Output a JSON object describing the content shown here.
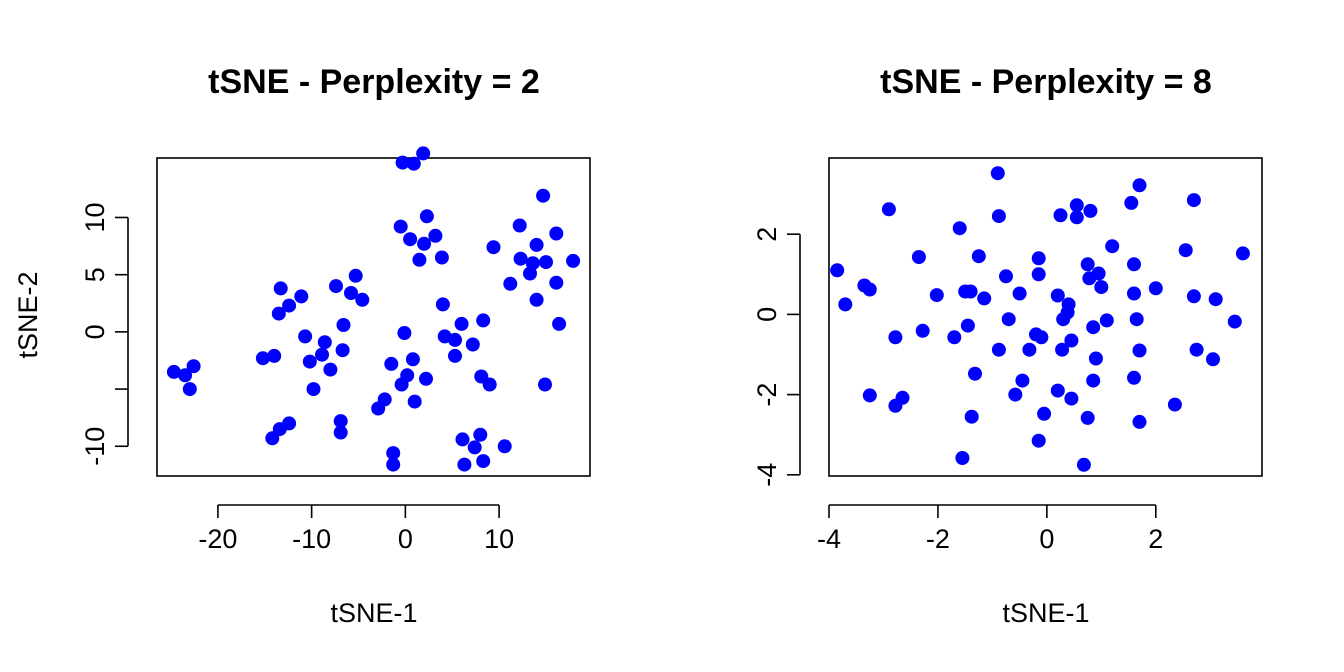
{
  "chart_data": [
    {
      "type": "scatter",
      "title": "tSNE - Perplexity = 2",
      "xlabel": "tSNE-1",
      "ylabel": "tSNE-2",
      "xlim": [
        -26.5,
        19.7
      ],
      "ylim": [
        -12.6,
        15.2
      ],
      "xticks": [
        -20,
        -10,
        0,
        10
      ],
      "yticks": [
        -10,
        -5,
        0,
        5,
        10
      ],
      "ytick_labels": [
        "-10",
        "",
        "0",
        "5",
        "10"
      ],
      "grid": false,
      "marker_color": "#0000ff",
      "points": [
        {
          "x": -24.7,
          "y": -3.5
        },
        {
          "x": -23.5,
          "y": -3.8
        },
        {
          "x": -23.0,
          "y": -5.0
        },
        {
          "x": -22.6,
          "y": -3.0
        },
        {
          "x": -14.2,
          "y": -9.3
        },
        {
          "x": -13.4,
          "y": -8.5
        },
        {
          "x": -12.4,
          "y": -8.0
        },
        {
          "x": -15.2,
          "y": -2.3
        },
        {
          "x": -14.0,
          "y": -2.1
        },
        {
          "x": -13.5,
          "y": 1.6
        },
        {
          "x": -13.3,
          "y": 3.8
        },
        {
          "x": -12.4,
          "y": 2.3
        },
        {
          "x": -11.1,
          "y": 3.1
        },
        {
          "x": -10.7,
          "y": -0.4
        },
        {
          "x": -10.2,
          "y": -2.6
        },
        {
          "x": -9.8,
          "y": -5.0
        },
        {
          "x": -8.9,
          "y": -2.0
        },
        {
          "x": -8.6,
          "y": -0.9
        },
        {
          "x": -8.0,
          "y": -3.3
        },
        {
          "x": -7.4,
          "y": 4.0
        },
        {
          "x": -6.9,
          "y": -7.8
        },
        {
          "x": -6.9,
          "y": -8.8
        },
        {
          "x": -6.7,
          "y": -1.6
        },
        {
          "x": -6.6,
          "y": 0.6
        },
        {
          "x": -5.8,
          "y": 3.4
        },
        {
          "x": -5.3,
          "y": 4.9
        },
        {
          "x": -4.6,
          "y": 2.8
        },
        {
          "x": -2.9,
          "y": -6.7
        },
        {
          "x": -2.2,
          "y": -5.9
        },
        {
          "x": -1.5,
          "y": -2.8
        },
        {
          "x": -1.3,
          "y": -10.6
        },
        {
          "x": -1.3,
          "y": -11.6
        },
        {
          "x": -0.4,
          "y": -4.6
        },
        {
          "x": 0.2,
          "y": -3.8
        },
        {
          "x": -0.1,
          "y": -0.1
        },
        {
          "x": 0.8,
          "y": -2.4
        },
        {
          "x": 1.0,
          "y": -6.1
        },
        {
          "x": 2.2,
          "y": -4.1
        },
        {
          "x": -0.3,
          "y": 14.8
        },
        {
          "x": 0.9,
          "y": 14.7
        },
        {
          "x": 1.9,
          "y": 15.6
        },
        {
          "x": -0.5,
          "y": 9.2
        },
        {
          "x": 0.5,
          "y": 8.1
        },
        {
          "x": 2.0,
          "y": 7.7
        },
        {
          "x": 2.3,
          "y": 10.1
        },
        {
          "x": 3.2,
          "y": 8.4
        },
        {
          "x": 1.5,
          "y": 6.3
        },
        {
          "x": 3.9,
          "y": 6.5
        },
        {
          "x": 4.0,
          "y": 2.4
        },
        {
          "x": 4.2,
          "y": -0.4
        },
        {
          "x": 5.3,
          "y": -0.7
        },
        {
          "x": 5.3,
          "y": -2.1
        },
        {
          "x": 6.0,
          "y": 0.7
        },
        {
          "x": 7.2,
          "y": -1.1
        },
        {
          "x": 8.3,
          "y": 1.0
        },
        {
          "x": 8.1,
          "y": -3.9
        },
        {
          "x": 9.0,
          "y": -4.6
        },
        {
          "x": 6.1,
          "y": -9.4
        },
        {
          "x": 7.4,
          "y": -10.1
        },
        {
          "x": 8.0,
          "y": -9.0
        },
        {
          "x": 6.3,
          "y": -11.6
        },
        {
          "x": 8.3,
          "y": -11.3
        },
        {
          "x": 10.6,
          "y": -10.0
        },
        {
          "x": 9.4,
          "y": 7.4
        },
        {
          "x": 11.2,
          "y": 4.2
        },
        {
          "x": 12.3,
          "y": 6.4
        },
        {
          "x": 12.2,
          "y": 9.3
        },
        {
          "x": 13.3,
          "y": 5.1
        },
        {
          "x": 13.6,
          "y": 6.0
        },
        {
          "x": 14.0,
          "y": 7.6
        },
        {
          "x": 14.7,
          "y": 11.9
        },
        {
          "x": 15.0,
          "y": 6.1
        },
        {
          "x": 14.0,
          "y": 2.8
        },
        {
          "x": 16.1,
          "y": 8.6
        },
        {
          "x": 16.1,
          "y": 4.3
        },
        {
          "x": 16.4,
          "y": 0.7
        },
        {
          "x": 17.9,
          "y": 6.2
        },
        {
          "x": 14.9,
          "y": -4.6
        }
      ]
    },
    {
      "type": "scatter",
      "title": "tSNE - Perplexity = 8",
      "xlabel": "tSNE-1",
      "ylabel": "",
      "xlim": [
        -4.0,
        3.95
      ],
      "ylim": [
        -4.03,
        3.9
      ],
      "xticks": [
        -4,
        -2,
        0,
        2
      ],
      "yticks": [
        -4,
        -2,
        0,
        2
      ],
      "ytick_labels": [
        "-4",
        "-2",
        "0",
        "2"
      ],
      "grid": false,
      "marker_color": "#0000ff",
      "points": [
        {
          "x": -3.85,
          "y": 1.1
        },
        {
          "x": -3.7,
          "y": 0.25
        },
        {
          "x": -3.35,
          "y": 0.72
        },
        {
          "x": -3.25,
          "y": 0.62
        },
        {
          "x": -3.25,
          "y": -2.02
        },
        {
          "x": -2.9,
          "y": 2.62
        },
        {
          "x": -2.78,
          "y": -0.57
        },
        {
          "x": -2.78,
          "y": -2.28
        },
        {
          "x": -2.65,
          "y": -2.08
        },
        {
          "x": -2.35,
          "y": 1.43
        },
        {
          "x": -2.28,
          "y": -0.41
        },
        {
          "x": -2.02,
          "y": 0.48
        },
        {
          "x": -1.7,
          "y": -0.57
        },
        {
          "x": -1.6,
          "y": 2.15
        },
        {
          "x": -1.55,
          "y": -3.58
        },
        {
          "x": -1.5,
          "y": 0.57
        },
        {
          "x": -1.45,
          "y": -0.28
        },
        {
          "x": -1.4,
          "y": 0.57
        },
        {
          "x": -1.38,
          "y": -2.55
        },
        {
          "x": -1.32,
          "y": -1.48
        },
        {
          "x": -1.25,
          "y": 1.45
        },
        {
          "x": -1.15,
          "y": 0.4
        },
        {
          "x": -0.9,
          "y": 3.52
        },
        {
          "x": -0.88,
          "y": 2.45
        },
        {
          "x": -0.88,
          "y": -0.88
        },
        {
          "x": -0.75,
          "y": 0.95
        },
        {
          "x": -0.7,
          "y": -0.12
        },
        {
          "x": -0.58,
          "y": -2.0
        },
        {
          "x": -0.5,
          "y": 0.52
        },
        {
          "x": -0.45,
          "y": -1.65
        },
        {
          "x": -0.32,
          "y": -0.88
        },
        {
          "x": -0.2,
          "y": -0.5
        },
        {
          "x": -0.15,
          "y": 1.4
        },
        {
          "x": -0.15,
          "y": 1.0
        },
        {
          "x": -0.15,
          "y": -3.15
        },
        {
          "x": -0.1,
          "y": -0.57
        },
        {
          "x": -0.05,
          "y": -2.48
        },
        {
          "x": 0.2,
          "y": 0.47
        },
        {
          "x": 0.2,
          "y": -1.9
        },
        {
          "x": 0.25,
          "y": 2.47
        },
        {
          "x": 0.28,
          "y": -0.88
        },
        {
          "x": 0.3,
          "y": -0.12
        },
        {
          "x": 0.38,
          "y": 0.05
        },
        {
          "x": 0.4,
          "y": 0.25
        },
        {
          "x": 0.45,
          "y": -2.1
        },
        {
          "x": 0.45,
          "y": -0.65
        },
        {
          "x": 0.55,
          "y": 2.72
        },
        {
          "x": 0.55,
          "y": 2.42
        },
        {
          "x": 0.68,
          "y": -3.75
        },
        {
          "x": 0.75,
          "y": -2.58
        },
        {
          "x": 0.75,
          "y": 1.25
        },
        {
          "x": 0.78,
          "y": 0.9
        },
        {
          "x": 0.8,
          "y": 2.58
        },
        {
          "x": 0.85,
          "y": -1.65
        },
        {
          "x": 0.85,
          "y": -0.32
        },
        {
          "x": 0.9,
          "y": -1.1
        },
        {
          "x": 0.95,
          "y": 1.02
        },
        {
          "x": 1.0,
          "y": 0.68
        },
        {
          "x": 1.1,
          "y": -0.15
        },
        {
          "x": 1.2,
          "y": 1.7
        },
        {
          "x": 1.55,
          "y": 2.78
        },
        {
          "x": 1.6,
          "y": 1.25
        },
        {
          "x": 1.6,
          "y": 0.52
        },
        {
          "x": 1.6,
          "y": -1.58
        },
        {
          "x": 1.65,
          "y": -0.12
        },
        {
          "x": 1.7,
          "y": 3.22
        },
        {
          "x": 1.7,
          "y": -0.9
        },
        {
          "x": 1.7,
          "y": -2.68
        },
        {
          "x": 2.0,
          "y": 0.65
        },
        {
          "x": 2.35,
          "y": -2.25
        },
        {
          "x": 2.55,
          "y": 1.6
        },
        {
          "x": 2.7,
          "y": 2.85
        },
        {
          "x": 2.7,
          "y": 0.45
        },
        {
          "x": 2.75,
          "y": -0.88
        },
        {
          "x": 3.05,
          "y": -1.12
        },
        {
          "x": 3.1,
          "y": 0.38
        },
        {
          "x": 3.45,
          "y": -0.18
        },
        {
          "x": 3.6,
          "y": 1.52
        }
      ]
    }
  ]
}
